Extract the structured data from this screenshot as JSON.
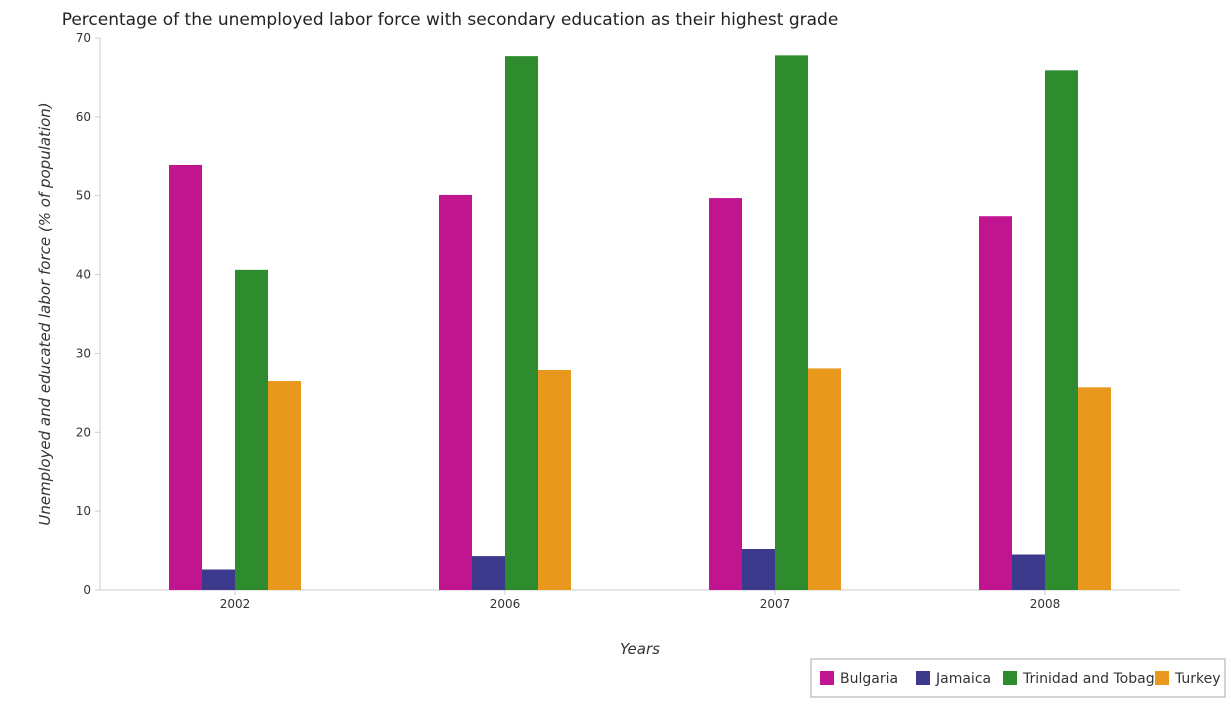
{
  "chart_data": {
    "type": "bar",
    "title": "Percentage of the unemployed labor force with secondary education as their highest grade",
    "xlabel": "Years",
    "ylabel": "Unemployed and educated labor force (% of population)",
    "categories": [
      "2002",
      "2006",
      "2007",
      "2008"
    ],
    "ylim": [
      0,
      70
    ],
    "yticks": [
      0,
      10,
      20,
      30,
      40,
      50,
      60,
      70
    ],
    "grid": false,
    "legend_position": "bottom-right",
    "series": [
      {
        "name": "Bulgaria",
        "color": "#c0158f",
        "values": [
          53.9,
          50.1,
          49.7,
          47.4
        ]
      },
      {
        "name": "Jamaica",
        "color": "#3c3a8c",
        "values": [
          2.6,
          4.3,
          5.2,
          4.5
        ]
      },
      {
        "name": "Trinidad and Tobago",
        "color": "#2e8b2e",
        "values": [
          40.6,
          67.7,
          67.8,
          65.9
        ]
      },
      {
        "name": "Turkey",
        "color": "#e8981c",
        "values": [
          26.5,
          27.9,
          28.1,
          25.7
        ]
      }
    ]
  }
}
